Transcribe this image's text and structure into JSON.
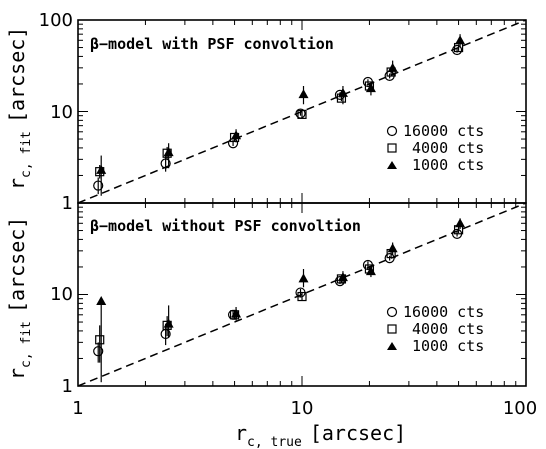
{
  "chart_data": [
    {
      "type": "scatter",
      "title": "β−model with PSF convoltion",
      "xscale": "log",
      "yscale": "log",
      "xlim": [
        1,
        100
      ],
      "ylim": [
        1,
        100
      ],
      "yticks": [
        "1",
        "10",
        "100"
      ],
      "ylabel_main": "r",
      "ylabel_sub": "c, fit",
      "ylabel_unit": "[arcsec]",
      "reference_line": "y = x (dashed)",
      "legend_position": "right",
      "series": [
        {
          "name": "16000 cts",
          "marker": "open-circle",
          "points": [
            [
              1.25,
              1.55,
              1.25,
              1.9
            ],
            [
              2.5,
              2.7,
              2.2,
              3.3
            ],
            [
              5,
              4.5,
              4.2,
              4.9
            ],
            [
              10,
              9.5,
              9.0,
              10.2
            ],
            [
              15,
              15.2,
              14.2,
              16.2
            ],
            [
              20,
              21,
              19.5,
              22.5
            ],
            [
              25,
              24.5,
              23,
              26
            ],
            [
              50,
              47,
              44,
              50
            ]
          ]
        },
        {
          "name": "4000 cts",
          "marker": "open-square",
          "points": [
            [
              1.25,
              2.2,
              1.85,
              2.6
            ],
            [
              2.5,
              3.5,
              3.0,
              4.1
            ],
            [
              5,
              5.2,
              4.7,
              5.8
            ],
            [
              10,
              9.3,
              8.6,
              10.2
            ],
            [
              15,
              14,
              13,
              15.3
            ],
            [
              20,
              19,
              17.5,
              20.5
            ],
            [
              25,
              27,
              25,
              29.5
            ],
            [
              50,
              50,
              46,
              54
            ]
          ]
        },
        {
          "name": "1000 cts",
          "marker": "filled-triangle",
          "points": [
            [
              1.25,
              2.3,
              1.2,
              3.3
            ],
            [
              2.5,
              3.6,
              2.4,
              4.5
            ],
            [
              5,
              5.5,
              4.6,
              6.4
            ],
            [
              10,
              15.5,
              12,
              19
            ],
            [
              15,
              16,
              12,
              19
            ],
            [
              20,
              18,
              15,
              21
            ],
            [
              25,
              30,
              25,
              36
            ],
            [
              50,
              60,
              50,
              70
            ]
          ]
        }
      ]
    },
    {
      "type": "scatter",
      "title": "β−model without PSF convoltion",
      "xscale": "log",
      "yscale": "log",
      "xlim": [
        1,
        100
      ],
      "ylim": [
        1,
        100
      ],
      "xticks": [
        "1",
        "10",
        "100"
      ],
      "yticks": [
        "1",
        "10"
      ],
      "xlabel_main": "r",
      "xlabel_sub": "c, true",
      "xlabel_unit": "[arcsec]",
      "ylabel_main": "r",
      "ylabel_sub": "c, fit",
      "ylabel_unit": "[arcsec]",
      "reference_line": "y = x (dashed)",
      "legend_position": "right",
      "series": [
        {
          "name": "16000 cts",
          "marker": "open-circle",
          "points": [
            [
              1.25,
              2.4,
              1.8,
              3.0
            ],
            [
              2.5,
              3.7,
              2.8,
              4.8
            ],
            [
              5,
              6,
              5.5,
              6.6
            ],
            [
              10,
              10.5,
              9.5,
              11.5
            ],
            [
              15,
              14,
              13,
              15
            ],
            [
              20,
              21,
              19,
              23
            ],
            [
              25,
              25,
              23.5,
              26.5
            ],
            [
              50,
              46,
              43,
              49
            ]
          ]
        },
        {
          "name": "4000 cts",
          "marker": "open-square",
          "points": [
            [
              1.25,
              3.2,
              1.8,
              4.6
            ],
            [
              2.5,
              4.6,
              3.5,
              5.8
            ],
            [
              5,
              6,
              5.3,
              6.8
            ],
            [
              10,
              9.5,
              8.7,
              10.5
            ],
            [
              15,
              14.8,
              13.5,
              16
            ],
            [
              20,
              19,
              17.5,
              20.5
            ],
            [
              25,
              28,
              25,
              31
            ],
            [
              50,
              51,
              47,
              55
            ]
          ]
        },
        {
          "name": "1000 cts",
          "marker": "filled-triangle",
          "points": [
            [
              1.25,
              8.5,
              1.1,
              9.0
            ],
            [
              2.5,
              4.8,
              3.4,
              7.6
            ],
            [
              5,
              6.2,
              5.2,
              7.3
            ],
            [
              10,
              15,
              12,
              19
            ],
            [
              15,
              15.5,
              13,
              18
            ],
            [
              20,
              18,
              15.5,
              20.5
            ],
            [
              25,
              32,
              27,
              37
            ],
            [
              50,
              60,
              52,
              68
            ]
          ]
        }
      ]
    }
  ],
  "legend": {
    "entries": [
      "16000 cts",
      "4000 cts",
      "1000 cts"
    ]
  }
}
